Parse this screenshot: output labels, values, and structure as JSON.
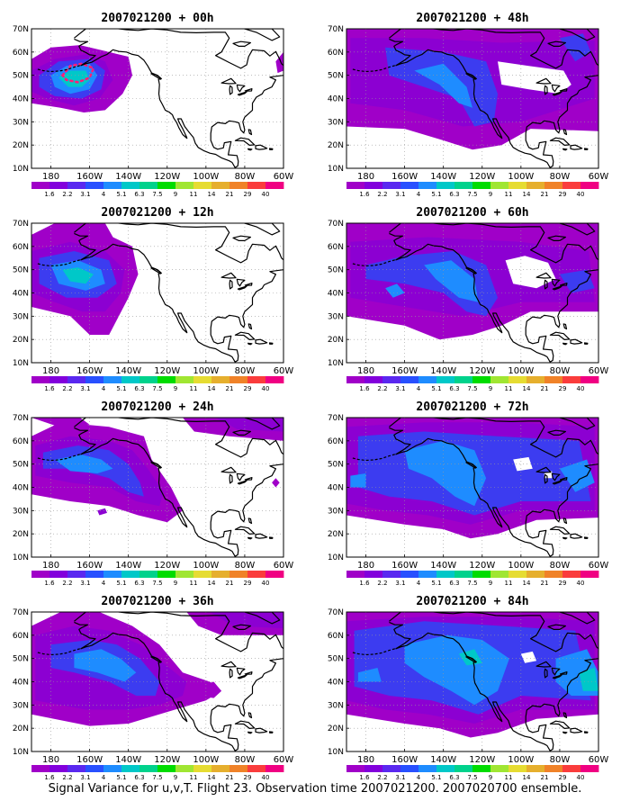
{
  "caption": "Signal Variance for u,v,T. Flight 23. Observation time 2007021200. 2007020700 ensemble.",
  "colorbar": {
    "labels": [
      "1.6",
      "2.2",
      "3.1",
      "4",
      "5.1",
      "6.3",
      "7.5",
      "9",
      "11",
      "14",
      "21",
      "29",
      "40"
    ],
    "colors": [
      "#a000c8",
      "#8200dc",
      "#5a28f0",
      "#2850ff",
      "#1e8cff",
      "#00c8c8",
      "#00d28c",
      "#00dc00",
      "#a0e632",
      "#e6dc32",
      "#e6af2d",
      "#f08228",
      "#fa3c3c",
      "#f00082"
    ]
  },
  "map": {
    "lon_ticks": [
      "180",
      "160W",
      "140W",
      "120W",
      "100W",
      "80W",
      "60W"
    ],
    "lat_ticks": [
      "10N",
      "20N",
      "30N",
      "40N",
      "50N",
      "60N",
      "70N"
    ],
    "lon_range": [
      -190,
      -60
    ],
    "lat_range": [
      10,
      70
    ]
  },
  "panels": [
    {
      "title": "2007021200 + 00h"
    },
    {
      "title": "2007021200 + 48h"
    },
    {
      "title": "2007021200 + 12h"
    },
    {
      "title": "2007021200 + 60h"
    },
    {
      "title": "2007021200 + 24h"
    },
    {
      "title": "2007021200 + 72h"
    },
    {
      "title": "2007021200 + 36h"
    },
    {
      "title": "2007021200 + 84h"
    }
  ]
}
